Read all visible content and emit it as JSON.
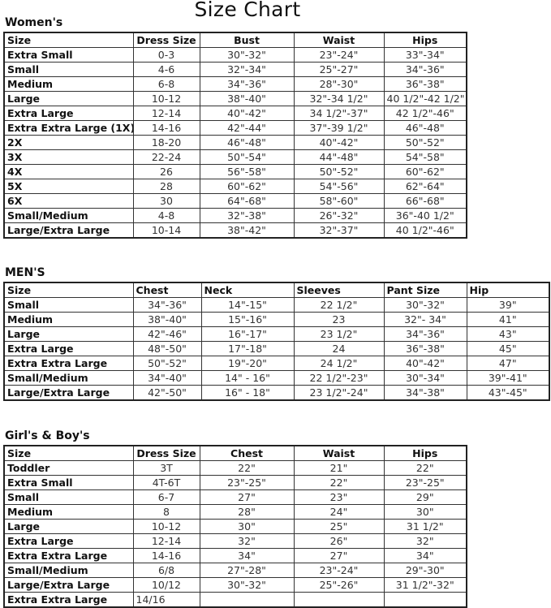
{
  "title": "Size Chart",
  "womens": {
    "heading": "Women's",
    "columns": [
      "Size",
      "Dress Size",
      "Bust",
      "Waist",
      "Hips"
    ],
    "rows": [
      [
        "Extra Small",
        "0-3",
        "30\"-32\"",
        "23\"-24\"",
        "33\"-34\""
      ],
      [
        "Small",
        "4-6",
        "32\"-34\"",
        "25\"-27\"",
        "34\"-36\""
      ],
      [
        "Medium",
        "6-8",
        "34\"-36\"",
        "28\"-30\"",
        "36\"-38\""
      ],
      [
        "Large",
        "10-12",
        "38\"-40\"",
        "32\"-34 1/2\"",
        "40 1/2\"-42 1/2\""
      ],
      [
        "Extra Large",
        "12-14",
        "40\"-42\"",
        "34 1/2\"-37\"",
        "42 1/2\"-46\""
      ],
      [
        "Extra Extra Large (1X)",
        "14-16",
        "42\"-44\"",
        "37\"-39 1/2\"",
        "46\"-48\""
      ],
      [
        "2X",
        "18-20",
        "46\"-48\"",
        "40\"-42\"",
        "50\"-52\""
      ],
      [
        "3X",
        "22-24",
        "50\"-54\"",
        "44\"-48\"",
        "54\"-58\""
      ],
      [
        "4X",
        "26",
        "56\"-58\"",
        "50\"-52\"",
        "60\"-62\""
      ],
      [
        "5X",
        "28",
        "60\"-62\"",
        "54\"-56\"",
        "62\"-64\""
      ],
      [
        "6X",
        "30",
        "64\"-68\"",
        "58\"-60\"",
        "66\"-68\""
      ],
      [
        "Small/Medium",
        "4-8",
        "32\"-38\"",
        "26\"-32\"",
        "36\"-40 1/2\""
      ],
      [
        "Large/Extra Large",
        "10-14",
        "38\"-42\"",
        "32\"-37\"",
        "40 1/2\"-46\""
      ]
    ]
  },
  "mens": {
    "heading": "MEN'S",
    "columns": [
      "Size",
      "Chest",
      "Neck",
      "Sleeves",
      "Pant Size",
      "Hip"
    ],
    "rows": [
      [
        "Small",
        "34\"-36\"",
        "14\"-15\"",
        "22 1/2\"",
        "30\"-32\"",
        "39\""
      ],
      [
        "Medium",
        "38\"-40\"",
        "15\"-16\"",
        "23",
        "32\"- 34\"",
        "41\""
      ],
      [
        "Large",
        "42\"-46\"",
        "16\"-17\"",
        "23 1/2\"",
        "34\"-36\"",
        "43\""
      ],
      [
        "Extra Large",
        "48\"-50\"",
        "17\"-18\"",
        "24",
        "36\"-38\"",
        "45\""
      ],
      [
        "Extra Extra Large",
        "50\"-52\"",
        "19\"-20\"",
        "24 1/2\"",
        "40\"-42\"",
        "47\""
      ],
      [
        "Small/Medium",
        "34\"-40\"",
        "14\" - 16\"",
        "22 1/2\"-23\"",
        "30\"-34\"",
        "39\"-41\""
      ],
      [
        "Large/Extra Large",
        "42\"-50\"",
        "16\" - 18\"",
        "23 1/2\"-24\"",
        "34\"-38\"",
        "43\"-45\""
      ]
    ]
  },
  "kids": {
    "heading": "Girl's & Boy's",
    "columns": [
      "Size",
      "Dress Size",
      "Chest",
      "Waist",
      "Hips"
    ],
    "rows": [
      [
        "Toddler",
        "3T",
        "22\"",
        "21\"",
        "22\""
      ],
      [
        "Extra Small",
        "4T-6T",
        "23\"-25\"",
        "22\"",
        "23\"-25\""
      ],
      [
        "Small",
        "6-7",
        "27\"",
        "23\"",
        "29\""
      ],
      [
        "Medium",
        "8",
        "28\"",
        "24\"",
        "30\""
      ],
      [
        "Large",
        "10-12",
        "30\"",
        "25\"",
        "31 1/2\""
      ],
      [
        "Extra Large",
        "12-14",
        "32\"",
        "26\"",
        "32\""
      ],
      [
        "Extra Extra Large",
        "14-16",
        "34\"",
        "27\"",
        "34\""
      ],
      [
        "Small/Medium",
        "6/8",
        "27\"-28\"",
        "23\"-24\"",
        "29\"-30\""
      ],
      [
        "Large/Extra Large",
        "10/12",
        "30\"-32\"",
        "25\"-26\"",
        "31 1/2\"-32\""
      ],
      [
        "Extra Extra Large",
        "14/16",
        "",
        "",
        ""
      ]
    ]
  }
}
